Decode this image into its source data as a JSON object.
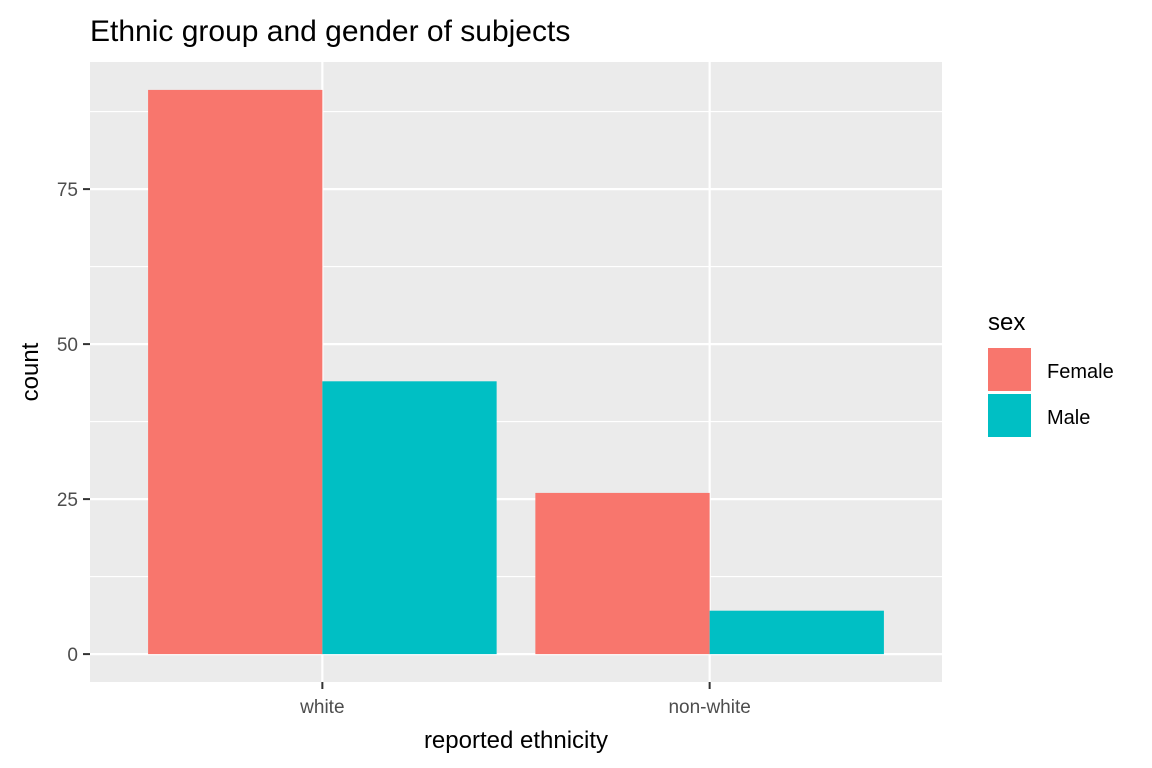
{
  "chart_data": {
    "type": "bar",
    "title": "Ethnic group and gender of subjects",
    "xlabel": "reported ethnicity",
    "ylabel": "count",
    "categories": [
      "white",
      "non-white"
    ],
    "series": [
      {
        "name": "Female",
        "values": [
          91,
          26
        ],
        "color": "#F8766D"
      },
      {
        "name": "Male",
        "values": [
          44,
          7
        ],
        "color": "#00BFC4"
      }
    ],
    "ylim": [
      -4.5,
      95.5
    ],
    "yticks": [
      0,
      25,
      50,
      75
    ],
    "legend": {
      "title": "sex",
      "position": "right"
    },
    "grid": true,
    "panel_background": "#EBEBEB"
  }
}
